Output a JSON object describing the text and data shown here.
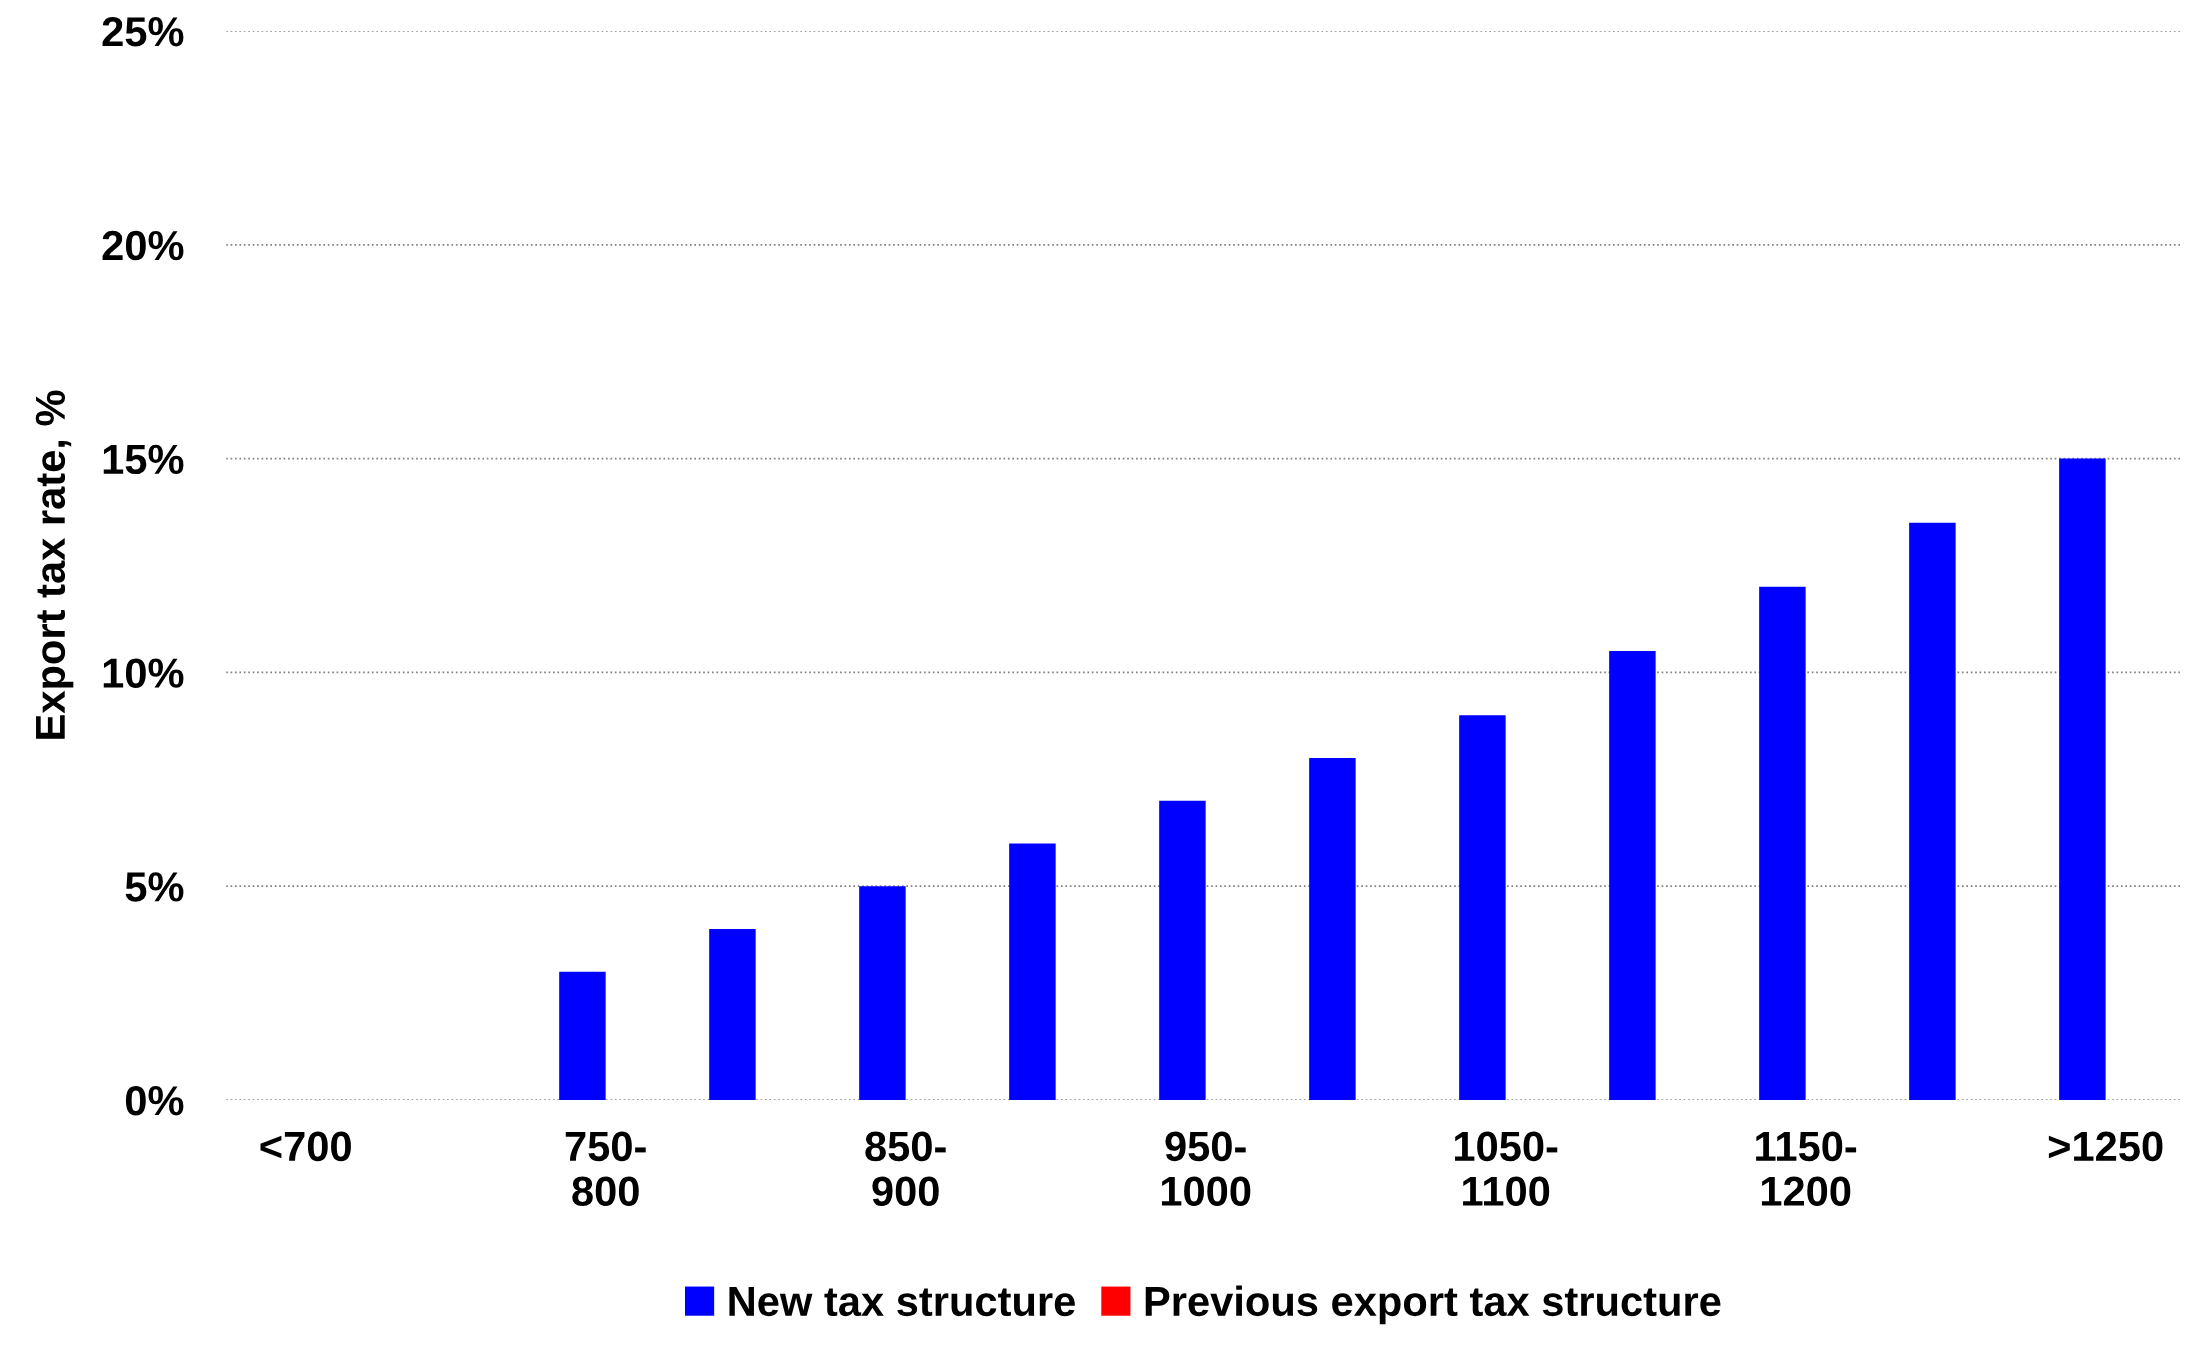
{
  "chart_data": {
    "type": "bar",
    "ylabel": "Export tax rate, %",
    "categories": [
      "<700",
      null,
      "750-\n800",
      null,
      "850-\n900",
      null,
      "950-\n1000",
      null,
      "1050-\n1100",
      null,
      "1150-\n1200",
      null,
      ">1250"
    ],
    "series": [
      {
        "name": "New tax structure",
        "color": "#0000ff",
        "values": [
          null,
          null,
          3,
          4,
          5,
          6,
          7,
          8,
          9,
          10.5,
          12,
          13.5,
          15
        ]
      },
      {
        "name": "Previous export tax structure",
        "color": "#ff0000",
        "values": [
          null,
          null,
          null,
          null,
          null,
          null,
          null,
          null,
          null,
          null,
          null,
          null,
          null
        ]
      }
    ],
    "ylim": [
      0,
      25
    ],
    "yticks": [
      {
        "value": 0,
        "label": "0%"
      },
      {
        "value": 5,
        "label": "5%"
      },
      {
        "value": 10,
        "label": "10%"
      },
      {
        "value": 15,
        "label": "15%"
      },
      {
        "value": 20,
        "label": "20%"
      },
      {
        "value": 25,
        "label": "25%"
      }
    ],
    "grid": "y",
    "legend": "bottom"
  }
}
